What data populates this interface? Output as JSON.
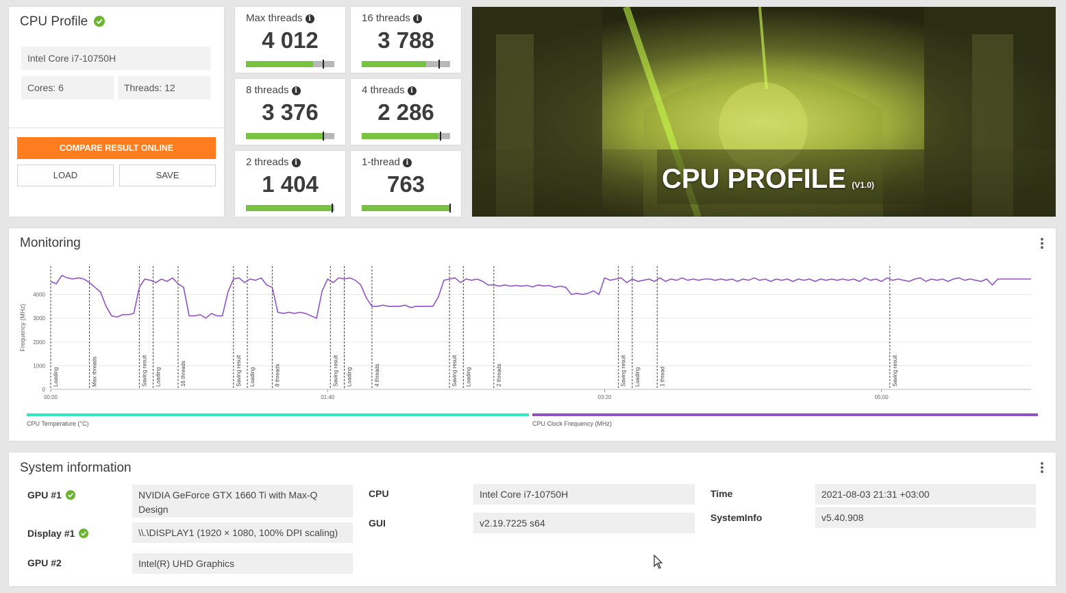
{
  "profile": {
    "title": "CPU Profile",
    "cpu_name": "Intel Core i7-10750H",
    "cores": "Cores: 6",
    "threads": "Threads: 12",
    "compare_btn": "COMPARE RESULT ONLINE",
    "load_btn": "LOAD",
    "save_btn": "SAVE"
  },
  "scores": [
    {
      "label": "Max threads",
      "value": "4 012",
      "fill_pct": 76,
      "marker_pct": 87
    },
    {
      "label": "16 threads",
      "value": "3 788",
      "fill_pct": 73,
      "marker_pct": 87
    },
    {
      "label": "8 threads",
      "value": "3 376",
      "fill_pct": 87,
      "marker_pct": 87
    },
    {
      "label": "4 threads",
      "value": "2 286",
      "fill_pct": 87,
      "marker_pct": 88
    },
    {
      "label": "2 threads",
      "value": "1 404",
      "fill_pct": 97,
      "marker_pct": 97
    },
    {
      "label": "1-thread",
      "value": "763",
      "fill_pct": 100,
      "marker_pct": 99
    }
  ],
  "banner": {
    "title": "CPU PROFILE",
    "version": "(V1.0)"
  },
  "monitoring": {
    "title": "Monitoring",
    "y_axis_label": "Frequency (MHz)",
    "y_ticks": [
      "0",
      "1000",
      "2000",
      "3000",
      "4000"
    ],
    "x_ticks": [
      "00:00",
      "01:40",
      "03:20",
      "05:00"
    ],
    "phases": [
      "Loading",
      "Max threads",
      "Saving result",
      "Loading",
      "16 threads",
      "Saving result",
      "Loading",
      "8 threads",
      "Saving result",
      "Loading",
      "4 threads",
      "Saving result",
      "Loading",
      "2 threads",
      "Saving result",
      "Loading",
      "1 thread",
      "Saving result"
    ],
    "legend": [
      {
        "label": "CPU Temperature (°C)",
        "color": "#2ee8c0"
      },
      {
        "label": "CPU Clock Frequency (MHz)",
        "color": "#8f52c6"
      }
    ]
  },
  "chart_data": {
    "type": "line",
    "title": "",
    "xlabel": "",
    "ylabel": "Frequency (MHz)",
    "x_unit": "seconds",
    "xlim": [
      0,
      354
    ],
    "ylim": [
      0,
      5200
    ],
    "series": [
      {
        "name": "CPU Clock Frequency (MHz)",
        "color": "#8f52c6",
        "x": [
          0,
          2,
          4,
          6,
          8,
          10,
          12,
          14,
          16,
          18,
          20,
          22,
          24,
          26,
          28,
          30,
          32,
          34,
          36,
          38,
          40,
          42,
          44,
          46,
          48,
          50,
          52,
          54,
          56,
          58,
          60,
          62,
          64,
          66,
          68,
          70,
          72,
          74,
          76,
          78,
          80,
          82,
          84,
          86,
          88,
          90,
          92,
          94,
          96,
          98,
          100,
          102,
          104,
          106,
          108,
          110,
          112,
          114,
          116,
          118,
          120,
          122,
          124,
          126,
          128,
          130,
          132,
          134,
          136,
          138,
          140,
          142,
          144,
          146,
          148,
          150,
          152,
          154,
          156,
          158,
          160,
          162,
          164,
          166,
          168,
          170,
          172,
          174,
          176,
          178,
          180,
          182,
          184,
          186,
          188,
          190,
          192,
          194,
          196,
          198,
          200,
          202,
          204,
          206,
          208,
          210,
          212,
          214,
          216,
          218,
          220,
          222,
          224,
          226,
          228,
          230,
          232,
          234,
          236,
          238,
          240,
          242,
          244,
          246,
          248,
          250,
          252,
          254,
          256,
          258,
          260,
          262,
          264,
          266,
          268,
          270,
          272,
          274,
          276,
          278,
          280,
          282,
          284,
          286,
          288,
          290,
          292,
          294,
          296,
          298,
          300,
          302,
          304,
          306,
          308,
          310,
          312,
          314,
          316,
          318,
          320,
          322,
          324,
          326,
          328,
          330,
          332,
          334,
          336,
          338,
          340,
          342,
          344,
          346,
          348,
          350,
          352,
          354
        ],
        "values": [
          4550,
          4450,
          4800,
          4700,
          4650,
          4700,
          4650,
          4500,
          4300,
          4100,
          3500,
          3100,
          3050,
          3150,
          3150,
          3200,
          4300,
          4650,
          4600,
          4500,
          4650,
          4550,
          4700,
          4450,
          4300,
          3100,
          3100,
          3150,
          3000,
          3200,
          3100,
          3100,
          4100,
          4650,
          4700,
          4500,
          4650,
          4600,
          4700,
          4400,
          4300,
          3250,
          3200,
          3250,
          3200,
          3250,
          3200,
          3100,
          3000,
          4150,
          4650,
          4500,
          4700,
          4650,
          4700,
          4600,
          4400,
          3850,
          3500,
          3500,
          3550,
          3500,
          3500,
          3500,
          3550,
          3450,
          3500,
          3500,
          3500,
          3500,
          3900,
          4600,
          4650,
          4700,
          4500,
          4650,
          4600,
          4650,
          4550,
          4400,
          4400,
          4350,
          4400,
          4350,
          4380,
          4350,
          4380,
          4320,
          4400,
          4360,
          4380,
          4300,
          4350,
          4300,
          4000,
          4050,
          4000,
          4050,
          4150,
          4000,
          4700,
          4600,
          4650,
          4700,
          4500,
          4650,
          4550,
          4600,
          4650,
          4550,
          4700,
          4550,
          4650,
          4600,
          4700,
          4600,
          4650,
          4600,
          4650,
          4650,
          4600,
          4650,
          4600,
          4650,
          4550,
          4650,
          4600,
          4700,
          4600,
          4650,
          4550,
          4650,
          4600,
          4650,
          4550,
          4650,
          4600,
          4650,
          4550,
          4650,
          4600,
          4650,
          4600,
          4650,
          4600,
          4650,
          4550,
          4700,
          4600,
          4650,
          4550,
          4700,
          4600,
          4650,
          4600,
          4550,
          4650,
          4700,
          4550,
          4650,
          4600,
          4650,
          4550,
          4650,
          4700,
          4600,
          4650,
          4600,
          4550,
          4650,
          4400,
          4650,
          4650,
          4650,
          4650,
          4650,
          4650,
          4650
        ]
      },
      {
        "name": "CPU Temperature (°C)",
        "color": "#2ee8c0",
        "x": [],
        "values": []
      }
    ],
    "phase_boundaries_s": [
      0,
      14,
      32,
      37,
      46,
      66,
      71,
      80,
      101,
      106,
      116,
      144,
      149,
      160,
      205,
      210,
      219,
      303
    ]
  },
  "sysinfo": {
    "title": "System information",
    "rows": [
      {
        "label": "GPU #1",
        "value": "NVIDIA GeForce GTX 1660 Ti with Max-Q Design",
        "ok": true
      },
      {
        "label": "Display #1",
        "value": "\\\\.\\DISPLAY1 (1920 × 1080, 100% DPI scaling)",
        "ok": true
      },
      {
        "label": "GPU #2",
        "value": "Intel(R) UHD Graphics",
        "ok": false
      },
      {
        "label": "CPU",
        "value": "Intel Core i7-10750H",
        "ok": false
      },
      {
        "label": "GUI",
        "value": "v2.19.7225 s64",
        "ok": false
      },
      {
        "label": "Time",
        "value": "2021-08-03 21:31 +03:00",
        "ok": false
      },
      {
        "label": "SystemInfo",
        "value": "v5.40.908",
        "ok": false
      }
    ]
  },
  "colors": {
    "accent_orange": "#ff7d1e",
    "score_green": "#79c141",
    "check_green": "#6ab52e"
  }
}
